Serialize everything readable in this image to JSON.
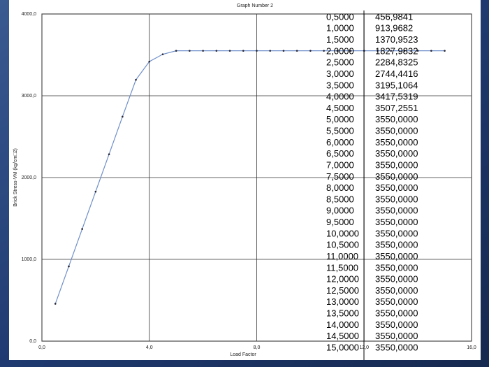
{
  "chart_data": {
    "type": "line",
    "title": "Graph Number 2",
    "x_label": "Load Factor",
    "y_label": "Brick Stress-VM (kg/cm□2)",
    "x": [
      0.5,
      1,
      1.5,
      2,
      2.5,
      3,
      3.5,
      4,
      4.5,
      5,
      5.5,
      6,
      6.5,
      7,
      7.5,
      8,
      8.5,
      9,
      9.5,
      10,
      10.5,
      11,
      11.5,
      12,
      12.5,
      13,
      13.5,
      14,
      14.5,
      15
    ],
    "x_labels": [
      "0,5000",
      "1,0000",
      "1,5000",
      "2,0000",
      "2,5000",
      "3,0000",
      "3,5000",
      "4,0000",
      "4,5000",
      "5,0000",
      "5,5000",
      "6,0000",
      "6,5000",
      "7,0000",
      "7,5000",
      "8,0000",
      "8,5000",
      "9,0000",
      "9,5000",
      "10,0000",
      "10,5000",
      "11,0000",
      "11,5000",
      "12,0000",
      "12,5000",
      "13,0000",
      "13,5000",
      "14,0000",
      "14,5000",
      "15,0000"
    ],
    "values": [
      456.9841,
      913.9682,
      1370.9523,
      1827.9832,
      2284.8325,
      2744.4416,
      3195.1064,
      3417.5319,
      3507.2551,
      3550,
      3550,
      3550,
      3550,
      3550,
      3550,
      3550,
      3550,
      3550,
      3550,
      3550,
      3550,
      3550,
      3550,
      3550,
      3550,
      3550,
      3550,
      3550,
      3550,
      3550
    ],
    "value_labels": [
      "456,9841",
      "913,9682",
      "1370,9523",
      "1827,9832",
      "2284,8325",
      "2744,4416",
      "3195,1064",
      "3417,5319",
      "3507,2551",
      "3550,0000",
      "3550,0000",
      "3550,0000",
      "3550,0000",
      "3550,0000",
      "3550,0000",
      "3550,0000",
      "3550,0000",
      "3550,0000",
      "3550,0000",
      "3550,0000",
      "3550,0000",
      "3550,0000",
      "3550,0000",
      "3550,0000",
      "3550,0000",
      "3550,0000",
      "3550,0000",
      "3550,0000",
      "3550,0000",
      "3550,0000"
    ],
    "color": "#6f8fc9",
    "xlim": [
      0,
      16
    ],
    "xticks": [
      {
        "value": 0,
        "label": "0,0"
      },
      {
        "value": 4,
        "label": "4,0"
      },
      {
        "value": 8,
        "label": "8,0"
      },
      {
        "value": 12,
        "label": "12,0"
      },
      {
        "value": 16,
        "label": "16,0"
      }
    ],
    "ylim": [
      0,
      4000
    ],
    "yticks": [
      {
        "value": 0,
        "label": "0,0"
      },
      {
        "value": 1000,
        "label": "1000,0"
      },
      {
        "value": 2000,
        "label": "2000,0"
      },
      {
        "value": 3000,
        "label": "3000,0"
      },
      {
        "value": 4000,
        "label": "4000,0"
      }
    ],
    "grid": true
  }
}
